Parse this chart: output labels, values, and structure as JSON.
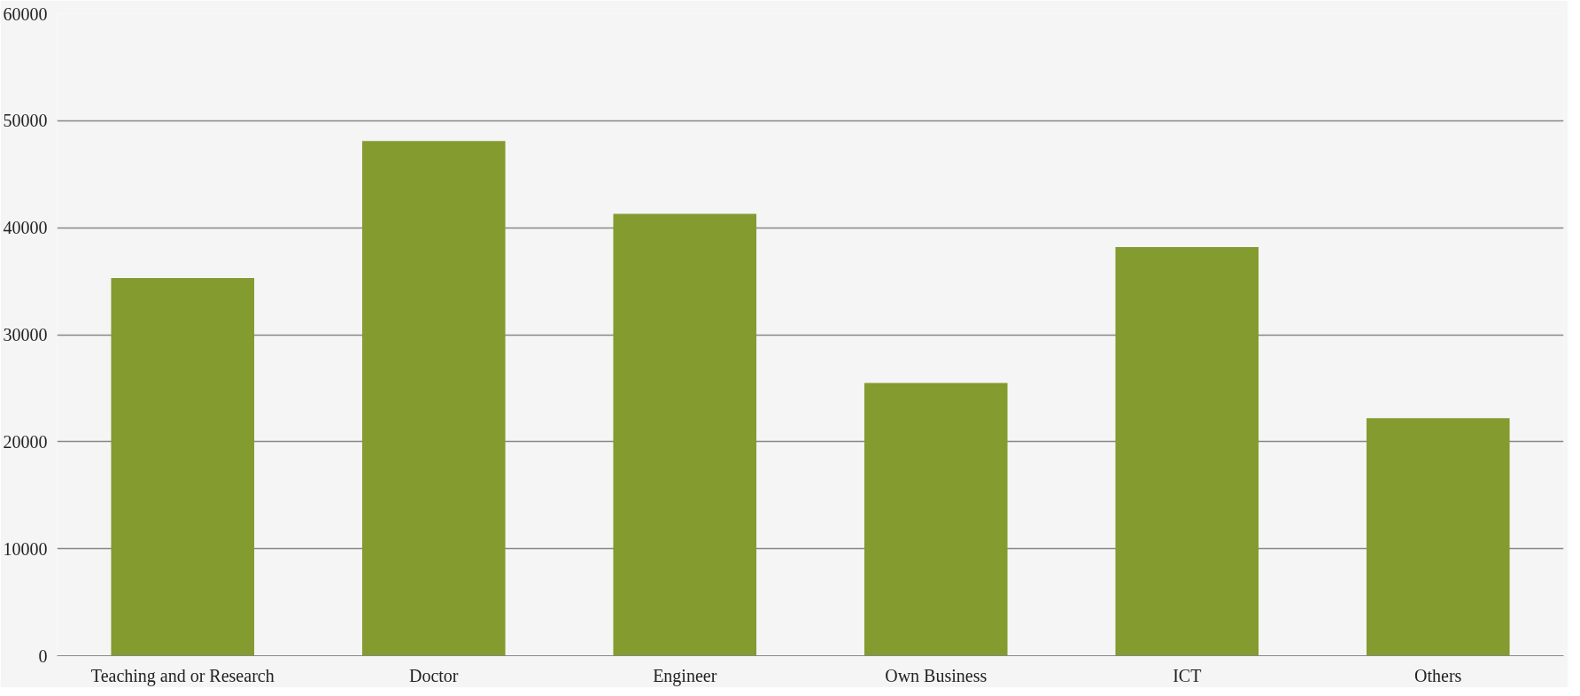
{
  "chart_data": {
    "type": "bar",
    "categories": [
      "Teaching and or Research",
      "Doctor",
      "Engineer",
      "Own Business",
      "ICT",
      "Others"
    ],
    "values": [
      35300,
      48100,
      41300,
      25500,
      38200,
      22200
    ],
    "color": "#849b2f",
    "ylim": [
      0,
      60000
    ],
    "yticks": [
      0,
      10000,
      20000,
      30000,
      40000,
      50000,
      60000
    ],
    "grid": "y"
  }
}
